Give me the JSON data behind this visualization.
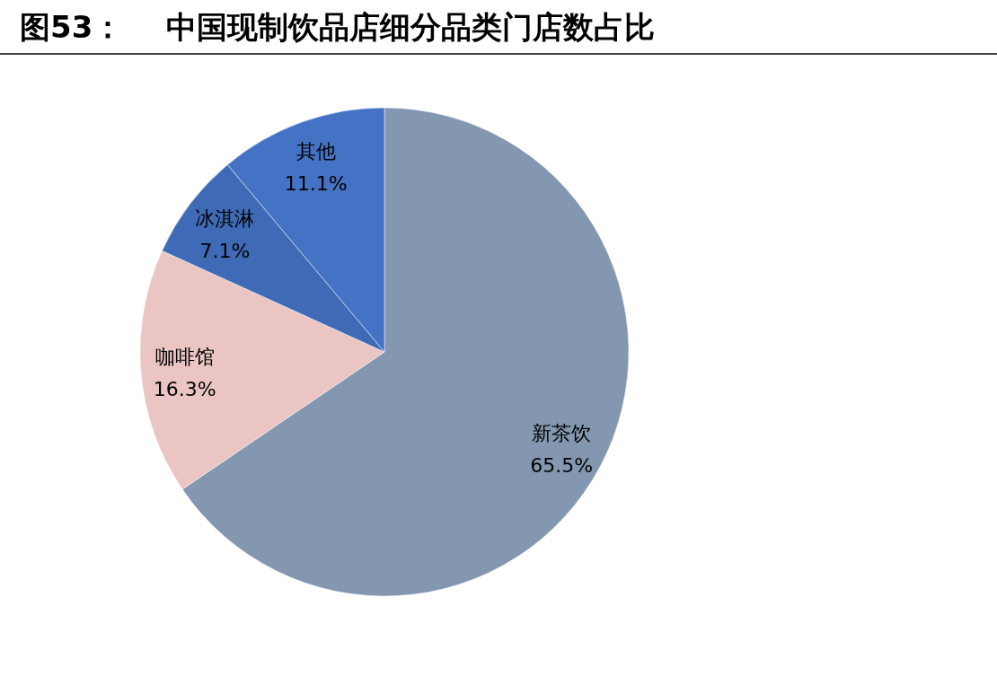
{
  "chart_data": {
    "type": "pie",
    "title": "图53：    中国现制饮品店细分品类门店数占比",
    "categories": [
      "新茶饮",
      "咖啡馆",
      "冰淇淋",
      "其他"
    ],
    "values": [
      65.5,
      16.3,
      7.1,
      11.1
    ],
    "colors": [
      "#8497b0",
      "#eac5c3",
      "#3f6ab5",
      "#4472c4"
    ],
    "value_labels": [
      "65.5%",
      "16.3%",
      "7.1%",
      "11.1%"
    ]
  }
}
